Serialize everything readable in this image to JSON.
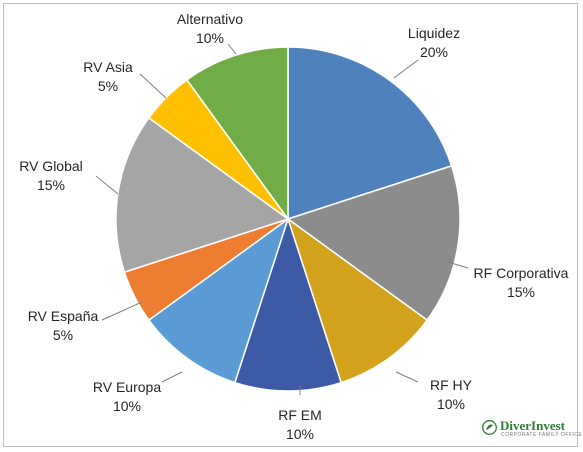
{
  "chart_data": {
    "type": "pie",
    "title": "",
    "slices": [
      {
        "label": "Liquidez",
        "value": 20,
        "value_label": "20%",
        "color": "#4f81bd"
      },
      {
        "label": "RF Corporativa",
        "value": 15,
        "value_label": "15%",
        "color": "#8c8c8c"
      },
      {
        "label": "RF HY",
        "value": 10,
        "value_label": "10%",
        "color": "#d4a31d"
      },
      {
        "label": "RF EM",
        "value": 10,
        "value_label": "10%",
        "color": "#3d5aa6"
      },
      {
        "label": "RV Europa",
        "value": 10,
        "value_label": "10%",
        "color": "#5b9bd5"
      },
      {
        "label": "RV España",
        "value": 5,
        "value_label": "5%",
        "color": "#ed7d31"
      },
      {
        "label": "RV Global",
        "value": 15,
        "value_label": "15%",
        "color": "#a5a5a5"
      },
      {
        "label": "RV Asia",
        "value": 5,
        "value_label": "5%",
        "color": "#ffc000"
      },
      {
        "label": "Alternativo",
        "value": 10,
        "value_label": "10%",
        "color": "#70ad47"
      }
    ],
    "legend": "none"
  },
  "brand": {
    "name": "DiverInvest",
    "tagline": "CORPORATE FAMILY OFFICE",
    "color": "#2e7d32"
  }
}
